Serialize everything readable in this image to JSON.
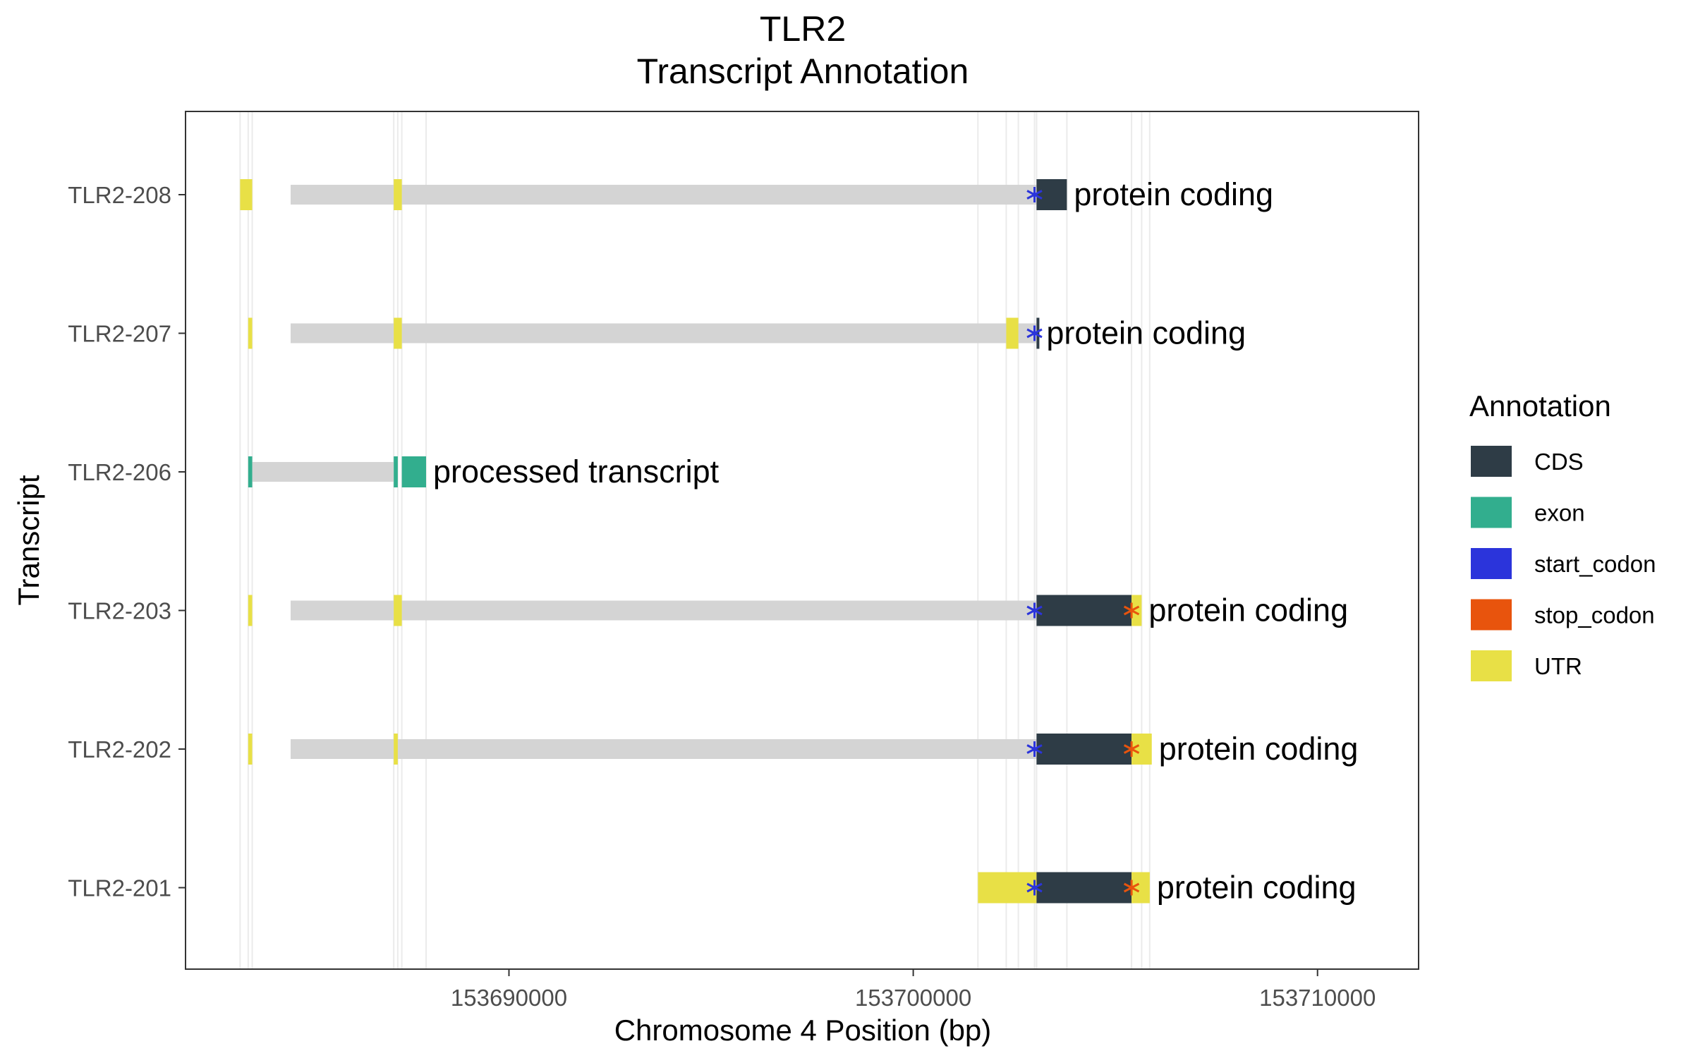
{
  "chart_data": {
    "type": "gene-track",
    "title": "TLR2",
    "subtitle": "Transcript Annotation",
    "xlabel": "Chromosome 4 Position (bp)",
    "ylabel": "Transcript",
    "xlim": [
      153682000,
      153712500
    ],
    "x_ticks": [
      153690000,
      153700000,
      153710000
    ],
    "x_tick_labels": [
      "153690000",
      "153700000",
      "153710000"
    ],
    "grid": "x major and minor gridlines at feature boundaries",
    "legend": {
      "title": "Annotation",
      "placement": "right",
      "entries": [
        {
          "label": "CDS",
          "color": "#2e3c46"
        },
        {
          "label": "exon",
          "color": "#32ae8e"
        },
        {
          "label": "start_codon",
          "color": "#2b34db"
        },
        {
          "label": "stop_codon",
          "color": "#e8540d"
        },
        {
          "label": "UTR",
          "color": "#e8e046"
        }
      ]
    },
    "intron_color": "#d4d4d4",
    "transcripts": [
      {
        "name": "TLR2-208",
        "biotype": "protein coding",
        "intron": [
          153684600,
          153703050
        ],
        "features": [
          {
            "type": "UTR",
            "start": 153683350,
            "end": 153683650
          },
          {
            "type": "UTR",
            "start": 153687150,
            "end": 153687350
          },
          {
            "type": "CDS",
            "start": 153703050,
            "end": 153703800
          }
        ],
        "start_codon": 153703000,
        "stop_codon": null
      },
      {
        "name": "TLR2-207",
        "biotype": "protein coding",
        "intron": [
          153684600,
          153703050
        ],
        "features": [
          {
            "type": "UTR",
            "start": 153683550,
            "end": 153683650
          },
          {
            "type": "UTR",
            "start": 153687150,
            "end": 153687350
          },
          {
            "type": "UTR",
            "start": 153702300,
            "end": 153702600
          },
          {
            "type": "CDS",
            "start": 153703050,
            "end": 153703110
          }
        ],
        "start_codon": 153703000,
        "stop_codon": null
      },
      {
        "name": "TLR2-206",
        "biotype": "processed transcript",
        "intron": [
          153683650,
          153687150
        ],
        "features": [
          {
            "type": "exon",
            "start": 153683550,
            "end": 153683650
          },
          {
            "type": "exon",
            "start": 153687150,
            "end": 153687250
          },
          {
            "type": "exon",
            "start": 153687350,
            "end": 153687950
          }
        ],
        "start_codon": null,
        "stop_codon": null
      },
      {
        "name": "TLR2-203",
        "biotype": "protein coding",
        "intron": [
          153684600,
          153703050
        ],
        "features": [
          {
            "type": "UTR",
            "start": 153683550,
            "end": 153683650
          },
          {
            "type": "UTR",
            "start": 153687150,
            "end": 153687350
          },
          {
            "type": "CDS",
            "start": 153703050,
            "end": 153705400
          },
          {
            "type": "UTR",
            "start": 153705400,
            "end": 153705650
          }
        ],
        "start_codon": 153703000,
        "stop_codon": 153705400
      },
      {
        "name": "TLR2-202",
        "biotype": "protein coding",
        "intron": [
          153684600,
          153703050
        ],
        "features": [
          {
            "type": "UTR",
            "start": 153683550,
            "end": 153683650
          },
          {
            "type": "UTR",
            "start": 153687150,
            "end": 153687250
          },
          {
            "type": "CDS",
            "start": 153703050,
            "end": 153705400
          },
          {
            "type": "UTR",
            "start": 153705400,
            "end": 153705900
          }
        ],
        "start_codon": 153703000,
        "stop_codon": 153705400
      },
      {
        "name": "TLR2-201",
        "biotype": "protein coding",
        "intron": null,
        "features": [
          {
            "type": "UTR",
            "start": 153701600,
            "end": 153703050
          },
          {
            "type": "CDS",
            "start": 153703050,
            "end": 153705400
          },
          {
            "type": "UTR",
            "start": 153705400,
            "end": 153705850
          }
        ],
        "start_codon": 153703000,
        "stop_codon": 153705400
      }
    ],
    "vertical_gridlines": [
      153683350,
      153683550,
      153683650,
      153687150,
      153687250,
      153687350,
      153687950,
      153701600,
      153702300,
      153702600,
      153703000,
      153703050,
      153703800,
      153705400,
      153705650,
      153705850
    ]
  }
}
